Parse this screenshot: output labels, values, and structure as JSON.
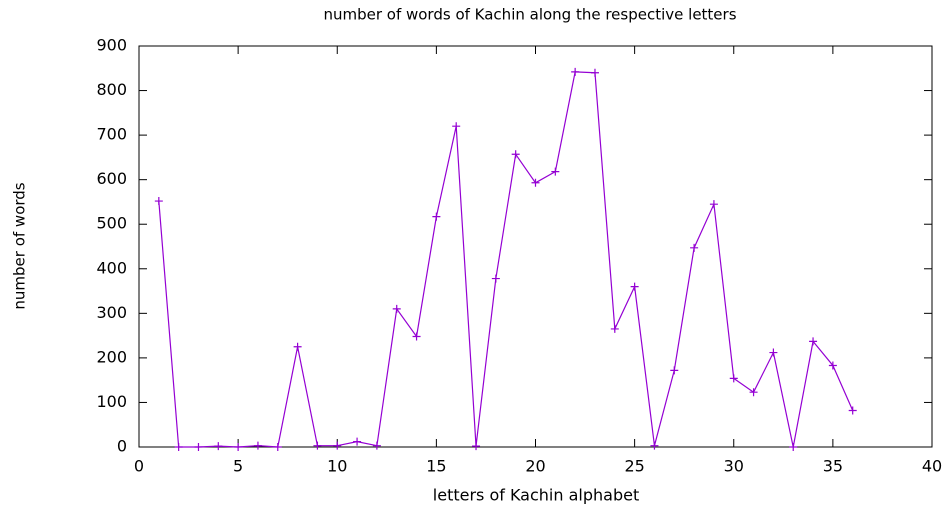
{
  "chart_data": {
    "type": "line",
    "title": "number of words of Kachin along the respective letters",
    "x_label": "letters of Kachin alphabet",
    "y_label": "number of words",
    "x": [
      1,
      2,
      3,
      4,
      5,
      6,
      7,
      8,
      9,
      10,
      11,
      12,
      13,
      14,
      15,
      16,
      17,
      18,
      19,
      20,
      21,
      22,
      23,
      24,
      25,
      26,
      27,
      28,
      29,
      30,
      31,
      32,
      33,
      34,
      35,
      36
    ],
    "series": [
      {
        "color": "#9400d3",
        "values": [
          552,
          0,
          0,
          2,
          0,
          3,
          0,
          225,
          3,
          3,
          12,
          3,
          310,
          248,
          517,
          720,
          2,
          378,
          657,
          593,
          618,
          842,
          840,
          265,
          360,
          3,
          172,
          447,
          545,
          154,
          123,
          212,
          0,
          237,
          183,
          82
        ]
      }
    ],
    "xlim": [
      0,
      40
    ],
    "xticks": [
      0,
      5,
      10,
      15,
      20,
      25,
      30,
      35,
      40
    ],
    "ylim": [
      0,
      900
    ],
    "yticks": [
      0,
      100,
      200,
      300,
      400,
      500,
      600,
      700,
      800,
      900
    ]
  }
}
